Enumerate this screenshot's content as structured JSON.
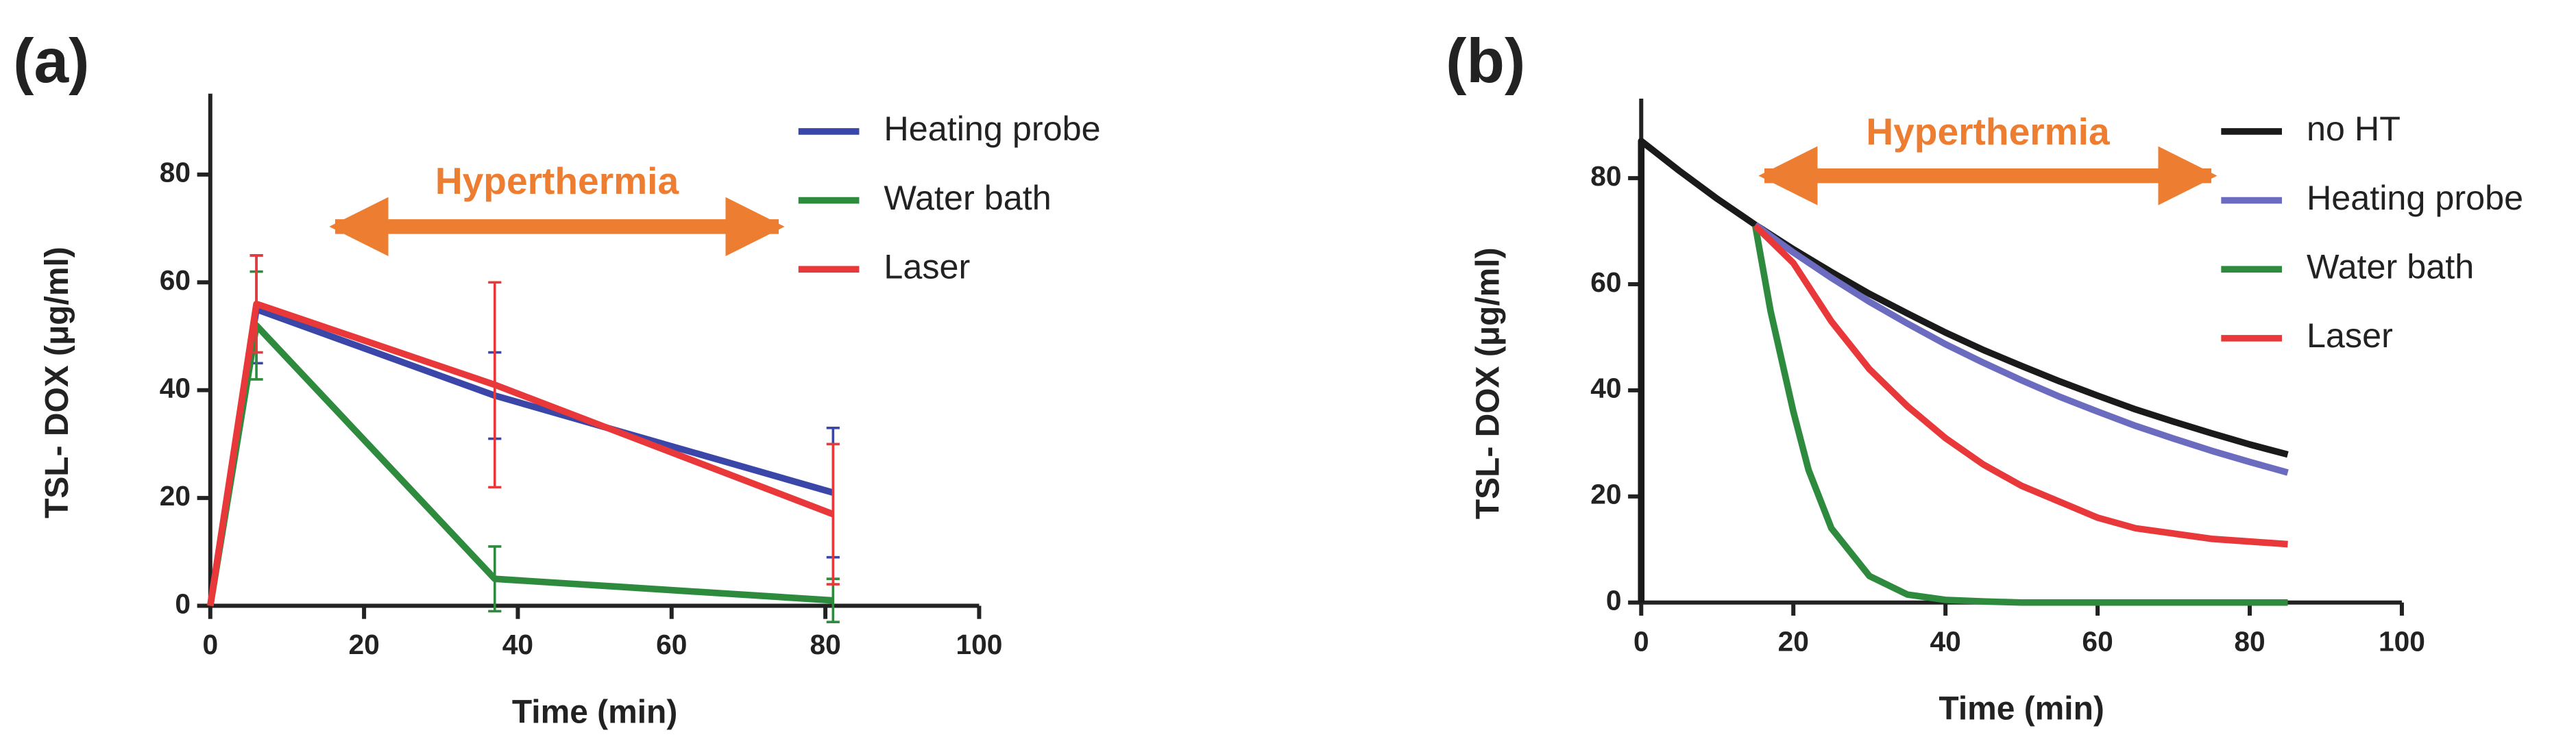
{
  "chart_data": [
    {
      "type": "line",
      "panel_label": "(a)",
      "annotation": "Hyperthermia",
      "xlabel": "Time (min)",
      "ylabel": "TSL- DOX (μg/ml)",
      "xlim": [
        0,
        100
      ],
      "xticks": [
        0,
        20,
        40,
        60,
        80,
        100
      ],
      "ylim": [
        0,
        95
      ],
      "yticks": [
        0,
        20,
        40,
        60,
        80
      ],
      "legend": "upper right",
      "series": [
        {
          "name": "Heating probe",
          "color": "#3a46a8",
          "x": [
            0,
            6,
            37,
            81
          ],
          "values": [
            0,
            55,
            39,
            21
          ],
          "errors": [
            null,
            10,
            8,
            12
          ]
        },
        {
          "name": "Water bath",
          "color": "#2e8b3e",
          "x": [
            0,
            6,
            37,
            81
          ],
          "values": [
            0,
            52,
            5,
            1
          ],
          "errors": [
            null,
            10,
            6,
            4
          ]
        },
        {
          "name": "Laser",
          "color": "#e8383a",
          "x": [
            0,
            6,
            37,
            81
          ],
          "values": [
            0,
            56,
            41,
            17
          ],
          "errors": [
            null,
            9,
            19,
            13
          ]
        }
      ]
    },
    {
      "type": "line",
      "panel_label": "(b)",
      "annotation": "Hyperthermia",
      "xlabel": "Time (min)",
      "ylabel": "TSL- DOX (μg/ml)",
      "xlim": [
        0,
        100
      ],
      "xticks": [
        0,
        20,
        40,
        60,
        80,
        100
      ],
      "ylim": [
        0,
        95
      ],
      "yticks": [
        0,
        20,
        40,
        60,
        80
      ],
      "legend": "upper right",
      "series": [
        {
          "name": "no HT",
          "color": "#1a1a1a",
          "x": [
            0,
            0,
            5,
            10,
            15,
            20,
            25,
            30,
            35,
            40,
            45,
            50,
            55,
            60,
            65,
            70,
            75,
            80,
            85
          ],
          "values": [
            0,
            87,
            81.4,
            76.1,
            71.2,
            66.6,
            62.3,
            58.2,
            54.5,
            50.9,
            47.6,
            44.6,
            41.7,
            39.0,
            36.4,
            34.1,
            31.9,
            29.8,
            27.9
          ]
        },
        {
          "name": "Heating probe",
          "color": "#6b6bc0",
          "x": [
            15,
            20,
            25,
            30,
            35,
            40,
            45,
            50,
            55,
            60,
            65,
            70,
            75,
            80,
            85
          ],
          "values": [
            71.2,
            66.0,
            61.2,
            56.7,
            52.6,
            48.7,
            45.2,
            41.9,
            38.8,
            36.0,
            33.3,
            30.9,
            28.6,
            26.5,
            24.5
          ]
        },
        {
          "name": "Water bath",
          "color": "#2e8b3e",
          "x": [
            15,
            17,
            20,
            22,
            25,
            30,
            35,
            40,
            45,
            50,
            60,
            70,
            85
          ],
          "values": [
            71,
            55,
            36,
            25,
            14,
            5,
            1.5,
            0.5,
            0.2,
            0,
            0,
            0,
            0
          ]
        },
        {
          "name": "Laser",
          "color": "#e8383a",
          "x": [
            15,
            20,
            25,
            30,
            35,
            40,
            45,
            50,
            55,
            60,
            65,
            70,
            75,
            80,
            85
          ],
          "values": [
            71,
            64,
            53,
            44,
            37,
            31,
            26,
            22,
            19,
            16,
            14,
            13,
            12,
            11.5,
            11
          ]
        }
      ]
    }
  ]
}
